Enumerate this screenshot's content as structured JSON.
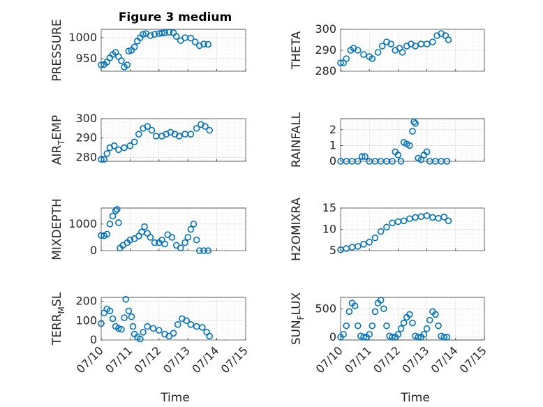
{
  "figure": {
    "title": "Figure 3 medium",
    "xlabel": "Time"
  },
  "chart_data": [
    {
      "type": "scatter",
      "ylabel": "PRESSURE",
      "ylim": [
        920,
        1020
      ],
      "yticks": [
        950,
        1000
      ],
      "grid": true,
      "points": [
        [
          0,
          935
        ],
        [
          0.1,
          936
        ],
        [
          0.2,
          942
        ],
        [
          0.3,
          952
        ],
        [
          0.4,
          960
        ],
        [
          0.5,
          965
        ],
        [
          0.6,
          955
        ],
        [
          0.7,
          945
        ],
        [
          0.8,
          930
        ],
        [
          0.9,
          935
        ],
        [
          0.95,
          968
        ],
        [
          1.05,
          970
        ],
        [
          1.15,
          978
        ],
        [
          1.25,
          992
        ],
        [
          1.35,
          1000
        ],
        [
          1.45,
          1008
        ],
        [
          1.55,
          1010
        ],
        [
          1.7,
          1005
        ],
        [
          1.85,
          1008
        ],
        [
          2.0,
          1010
        ],
        [
          2.1,
          1011
        ],
        [
          2.2,
          1012
        ],
        [
          2.35,
          1013
        ],
        [
          2.5,
          1012
        ],
        [
          2.6,
          1003
        ],
        [
          2.75,
          993
        ],
        [
          2.9,
          1000
        ],
        [
          3.1,
          999
        ],
        [
          3.25,
          990
        ],
        [
          3.4,
          981
        ],
        [
          3.55,
          985
        ],
        [
          3.7,
          984
        ]
      ]
    },
    {
      "type": "scatter",
      "ylabel": "THETA",
      "ylim": [
        280,
        300
      ],
      "yticks": [
        280,
        290,
        300
      ],
      "grid": true,
      "points": [
        [
          0,
          284
        ],
        [
          0.1,
          284
        ],
        [
          0.2,
          286
        ],
        [
          0.35,
          290
        ],
        [
          0.45,
          291
        ],
        [
          0.6,
          290
        ],
        [
          0.8,
          288
        ],
        [
          1.0,
          287
        ],
        [
          1.1,
          286
        ],
        [
          1.3,
          289
        ],
        [
          1.45,
          292
        ],
        [
          1.6,
          294
        ],
        [
          1.75,
          293
        ],
        [
          1.9,
          290
        ],
        [
          2.05,
          291
        ],
        [
          2.15,
          289
        ],
        [
          2.3,
          292
        ],
        [
          2.45,
          293
        ],
        [
          2.6,
          292
        ],
        [
          2.8,
          293
        ],
        [
          3.0,
          293
        ],
        [
          3.2,
          294
        ],
        [
          3.35,
          297
        ],
        [
          3.5,
          298
        ],
        [
          3.65,
          297
        ],
        [
          3.75,
          295
        ]
      ]
    },
    {
      "type": "scatter",
      "ylabel": "AIR_TEMP",
      "ylim": [
        278,
        300
      ],
      "yticks": [
        280,
        290,
        300
      ],
      "grid": true,
      "points": [
        [
          0,
          279
        ],
        [
          0.1,
          279
        ],
        [
          0.2,
          282
        ],
        [
          0.3,
          285
        ],
        [
          0.45,
          286
        ],
        [
          0.6,
          284
        ],
        [
          0.8,
          285
        ],
        [
          1.0,
          286
        ],
        [
          1.15,
          288
        ],
        [
          1.3,
          292
        ],
        [
          1.45,
          295
        ],
        [
          1.6,
          296
        ],
        [
          1.75,
          294
        ],
        [
          1.9,
          291
        ],
        [
          2.1,
          291
        ],
        [
          2.25,
          292
        ],
        [
          2.4,
          293
        ],
        [
          2.55,
          292
        ],
        [
          2.7,
          291
        ],
        [
          2.9,
          292
        ],
        [
          3.1,
          292
        ],
        [
          3.3,
          295
        ],
        [
          3.45,
          297
        ],
        [
          3.6,
          296
        ],
        [
          3.75,
          294
        ]
      ]
    },
    {
      "type": "scatter",
      "ylabel": "RAINFALL",
      "ylim": [
        0,
        2.7
      ],
      "yticks": [
        0,
        1,
        2
      ],
      "grid": true,
      "points": [
        [
          0,
          0
        ],
        [
          0.2,
          0
        ],
        [
          0.4,
          0
        ],
        [
          0.6,
          0
        ],
        [
          0.75,
          0.3
        ],
        [
          0.85,
          0.3
        ],
        [
          1.0,
          0
        ],
        [
          1.2,
          0
        ],
        [
          1.4,
          0
        ],
        [
          1.6,
          0
        ],
        [
          1.8,
          0
        ],
        [
          1.9,
          0.6
        ],
        [
          2.0,
          0.4
        ],
        [
          2.1,
          0
        ],
        [
          2.2,
          1.2
        ],
        [
          2.3,
          1.1
        ],
        [
          2.4,
          1.0
        ],
        [
          2.5,
          1.9
        ],
        [
          2.55,
          2.5
        ],
        [
          2.6,
          2.4
        ],
        [
          2.7,
          0.2
        ],
        [
          2.8,
          0.1
        ],
        [
          2.9,
          0.4
        ],
        [
          3.0,
          0.6
        ],
        [
          3.1,
          0
        ],
        [
          3.3,
          0
        ],
        [
          3.5,
          0
        ],
        [
          3.7,
          0
        ]
      ]
    },
    {
      "type": "scatter",
      "ylabel": "MIXDEPTH",
      "ylim": [
        0,
        1600
      ],
      "yticks": [
        0,
        1000
      ],
      "grid": true,
      "points": [
        [
          0,
          570
        ],
        [
          0.1,
          560
        ],
        [
          0.2,
          620
        ],
        [
          0.3,
          1000
        ],
        [
          0.4,
          1300
        ],
        [
          0.5,
          1500
        ],
        [
          0.55,
          1550
        ],
        [
          0.6,
          1050
        ],
        [
          0.65,
          100
        ],
        [
          0.75,
          200
        ],
        [
          0.9,
          300
        ],
        [
          1.0,
          400
        ],
        [
          1.15,
          450
        ],
        [
          1.3,
          550
        ],
        [
          1.4,
          700
        ],
        [
          1.5,
          900
        ],
        [
          1.6,
          650
        ],
        [
          1.7,
          500
        ],
        [
          1.85,
          300
        ],
        [
          2.0,
          300
        ],
        [
          2.1,
          400
        ],
        [
          2.2,
          250
        ],
        [
          2.3,
          600
        ],
        [
          2.45,
          500
        ],
        [
          2.6,
          200
        ],
        [
          2.75,
          100
        ],
        [
          2.9,
          300
        ],
        [
          3.0,
          500
        ],
        [
          3.1,
          800
        ],
        [
          3.2,
          1000
        ],
        [
          3.3,
          400
        ],
        [
          3.4,
          0
        ],
        [
          3.55,
          0
        ],
        [
          3.7,
          0
        ]
      ]
    },
    {
      "type": "scatter",
      "ylabel": "H2OMIXRA",
      "ylim": [
        5,
        15
      ],
      "yticks": [
        5,
        10,
        15
      ],
      "grid": true,
      "points": [
        [
          0,
          5.2
        ],
        [
          0.2,
          5.5
        ],
        [
          0.4,
          5.8
        ],
        [
          0.6,
          6.0
        ],
        [
          0.8,
          6.5
        ],
        [
          1.0,
          7.0
        ],
        [
          1.2,
          8.0
        ],
        [
          1.4,
          9.5
        ],
        [
          1.6,
          10.5
        ],
        [
          1.8,
          11.5
        ],
        [
          2.0,
          11.8
        ],
        [
          2.2,
          12.0
        ],
        [
          2.4,
          12.5
        ],
        [
          2.6,
          12.8
        ],
        [
          2.8,
          13.0
        ],
        [
          3.0,
          13.2
        ],
        [
          3.2,
          12.8
        ],
        [
          3.4,
          12.6
        ],
        [
          3.6,
          12.9
        ],
        [
          3.75,
          12.0
        ]
      ]
    },
    {
      "type": "scatter",
      "ylabel": "TERR_MSL",
      "ylim": [
        0,
        220
      ],
      "yticks": [
        0,
        100,
        200
      ],
      "grid": true,
      "points": [
        [
          0,
          85
        ],
        [
          0.1,
          140
        ],
        [
          0.2,
          160
        ],
        [
          0.3,
          150
        ],
        [
          0.4,
          110
        ],
        [
          0.5,
          70
        ],
        [
          0.6,
          60
        ],
        [
          0.7,
          55
        ],
        [
          0.8,
          115
        ],
        [
          0.85,
          210
        ],
        [
          0.95,
          150
        ],
        [
          1.05,
          120
        ],
        [
          1.1,
          70
        ],
        [
          1.15,
          30
        ],
        [
          1.25,
          15
        ],
        [
          1.35,
          5
        ],
        [
          1.45,
          40
        ],
        [
          1.6,
          70
        ],
        [
          1.8,
          60
        ],
        [
          2.0,
          50
        ],
        [
          2.2,
          30
        ],
        [
          2.35,
          20
        ],
        [
          2.5,
          35
        ],
        [
          2.65,
          80
        ],
        [
          2.8,
          110
        ],
        [
          2.95,
          100
        ],
        [
          3.1,
          80
        ],
        [
          3.3,
          70
        ],
        [
          3.5,
          65
        ],
        [
          3.65,
          40
        ],
        [
          3.75,
          20
        ]
      ]
    },
    {
      "type": "scatter",
      "ylabel": "SUN_FLUX",
      "ylim": [
        -50,
        700
      ],
      "yticks": [
        0,
        500
      ],
      "grid": true,
      "points": [
        [
          0,
          0
        ],
        [
          0.1,
          50
        ],
        [
          0.2,
          200
        ],
        [
          0.3,
          450
        ],
        [
          0.4,
          600
        ],
        [
          0.5,
          550
        ],
        [
          0.6,
          200
        ],
        [
          0.7,
          20
        ],
        [
          0.8,
          0
        ],
        [
          0.9,
          0
        ],
        [
          1.0,
          50
        ],
        [
          1.1,
          200
        ],
        [
          1.2,
          450
        ],
        [
          1.3,
          600
        ],
        [
          1.4,
          650
        ],
        [
          1.5,
          500
        ],
        [
          1.6,
          200
        ],
        [
          1.7,
          20
        ],
        [
          1.8,
          0
        ],
        [
          1.9,
          0
        ],
        [
          2.0,
          50
        ],
        [
          2.1,
          150
        ],
        [
          2.2,
          250
        ],
        [
          2.3,
          350
        ],
        [
          2.4,
          400
        ],
        [
          2.5,
          250
        ],
        [
          2.6,
          20
        ],
        [
          2.7,
          0
        ],
        [
          2.8,
          0
        ],
        [
          2.9,
          50
        ],
        [
          3.0,
          150
        ],
        [
          3.1,
          300
        ],
        [
          3.2,
          450
        ],
        [
          3.3,
          400
        ],
        [
          3.4,
          200
        ],
        [
          3.5,
          20
        ],
        [
          3.6,
          0
        ],
        [
          3.7,
          0
        ]
      ]
    }
  ],
  "xaxis": {
    "range": [
      0,
      5
    ],
    "ticks": [
      0,
      1,
      2,
      3,
      4,
      5
    ],
    "tick_labels": [
      "07/10",
      "07/11",
      "07/12",
      "07/13",
      "07/14",
      "07/15"
    ]
  }
}
